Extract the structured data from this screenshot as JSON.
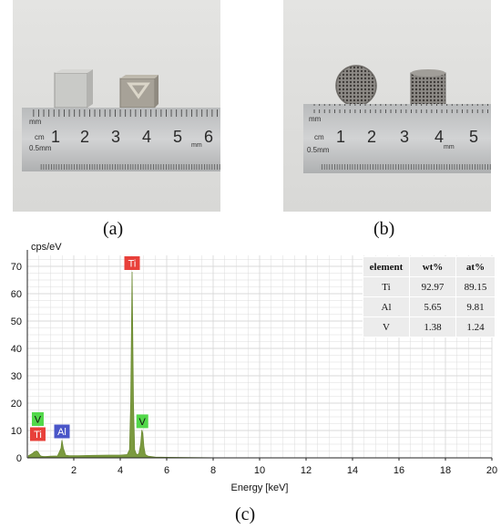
{
  "captions": {
    "a": "(a)",
    "b": "(b)",
    "c": "(c)"
  },
  "ruler_a": {
    "top_unit": "mm",
    "cm_unit": "cm",
    "half_mm": "0.5mm",
    "bottom_unit": "mm",
    "numbers": [
      "1",
      "2",
      "3",
      "4",
      "5",
      "6"
    ]
  },
  "ruler_b": {
    "top_unit": "mm",
    "cm_unit": "cm",
    "half_mm": "0.5mm",
    "bottom_unit": "mm",
    "numbers": [
      "1",
      "2",
      "3",
      "4",
      "5"
    ]
  },
  "table": {
    "headers": [
      "element",
      "wt%",
      "at%"
    ],
    "rows": [
      [
        "Ti",
        "92.97",
        "89.15"
      ],
      [
        "Al",
        "5.65",
        "9.81"
      ],
      [
        "V",
        "1.38",
        "1.24"
      ]
    ]
  },
  "colors": {
    "spectrum_fill": "#7b9a3f",
    "spectrum_line": "#6c8a32",
    "ti_label": "#e8403a",
    "al_label": "#4a56c8",
    "v_label": "#52d84a",
    "grid": "#d9d9d9"
  },
  "chart_data": {
    "type": "area",
    "xlabel": "Energy [keV]",
    "ylabel": "cps/eV",
    "xlim": [
      0,
      20
    ],
    "ylim": [
      0,
      74
    ],
    "xticks": [
      "2",
      "4",
      "6",
      "8",
      "10",
      "12",
      "14",
      "16",
      "18",
      "20"
    ],
    "yticks": [
      "0",
      "10",
      "20",
      "30",
      "40",
      "50",
      "60",
      "70"
    ],
    "grid": true,
    "series": [
      {
        "x": [
          0.05,
          0.2,
          0.3,
          0.4,
          0.45,
          0.5,
          0.55,
          0.6,
          0.7,
          0.8,
          1.0,
          1.3,
          1.45,
          1.49,
          1.55,
          1.65,
          1.8,
          2.2,
          2.8,
          3.5,
          4.0,
          4.3,
          4.4,
          4.45,
          4.51,
          4.57,
          4.62,
          4.7,
          4.8,
          4.88,
          4.93,
          4.97,
          5.02,
          5.08,
          5.2,
          5.5,
          6.0,
          7.0,
          8.0,
          10.0,
          12.0,
          15.0,
          20.0
        ],
        "y": [
          0.8,
          1.5,
          2.2,
          2.5,
          2.2,
          1.6,
          0.9,
          0.6,
          0.5,
          0.5,
          0.6,
          0.7,
          3.5,
          6.5,
          3.5,
          1.0,
          0.8,
          0.8,
          0.9,
          1.0,
          1.0,
          1.2,
          3.0,
          20,
          68,
          20,
          3.0,
          1.2,
          1.4,
          5.0,
          10.2,
          9.0,
          4.0,
          1.2,
          0.6,
          0.3,
          0.2,
          0.1,
          0.05,
          0.02,
          0.01,
          0.01,
          0.0
        ]
      }
    ],
    "annotations": [
      {
        "text": "Ti",
        "x": 4.51,
        "y": 68,
        "color": "#e8403a"
      },
      {
        "text": "V",
        "x": 4.95,
        "y": 10.2,
        "color": "#52d84a"
      },
      {
        "text": "Al",
        "x": 1.49,
        "y": 6.5,
        "color": "#4a56c8"
      },
      {
        "text": "V",
        "x": 0.45,
        "y": 11,
        "color": "#52d84a"
      },
      {
        "text": "Ti",
        "x": 0.45,
        "y": 5.5,
        "color": "#e8403a"
      }
    ]
  }
}
